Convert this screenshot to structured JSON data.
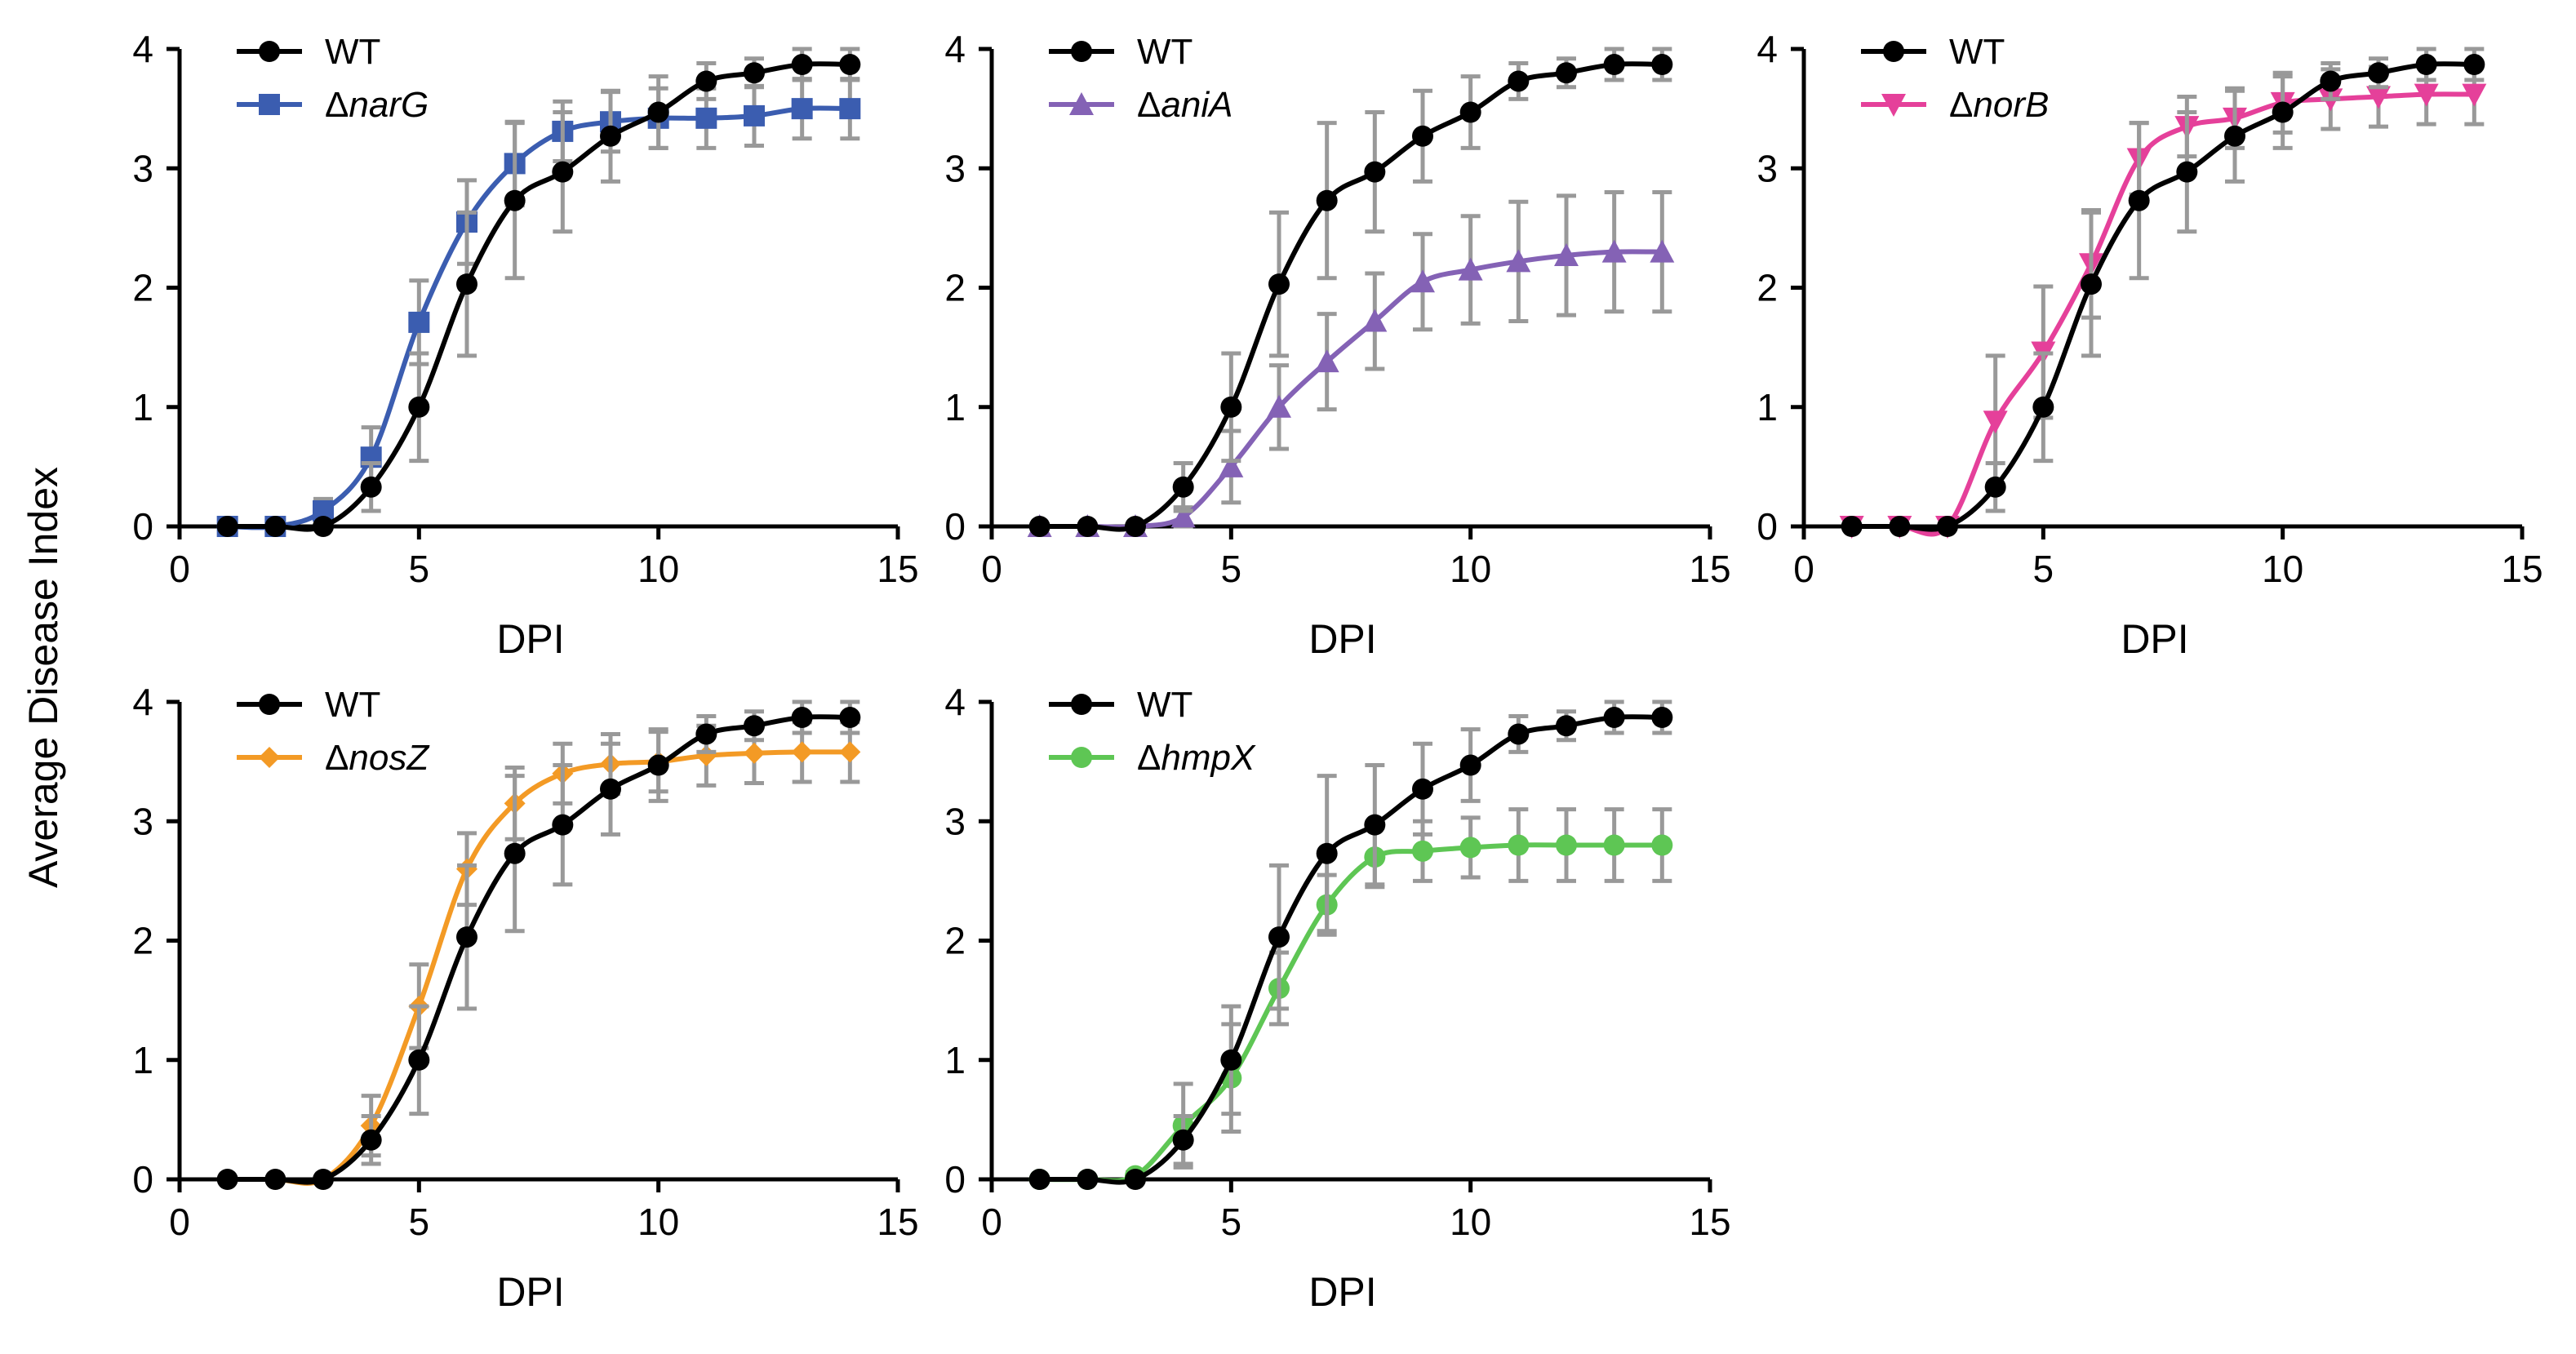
{
  "figure": {
    "ylabel": "Average Disease Index"
  },
  "chart_data": [
    {
      "type": "line",
      "xlabel": "DPI",
      "ylabel": "Average Disease Index",
      "xlim": [
        0,
        15
      ],
      "ylim": [
        0,
        4
      ],
      "xticks": [
        "0",
        "5",
        "10",
        "15"
      ],
      "yticks": [
        "0",
        "1",
        "2",
        "3",
        "4"
      ],
      "legend_position": "top-left",
      "x": [
        1,
        2,
        3,
        4,
        5,
        6,
        7,
        8,
        9,
        10,
        11,
        12,
        13,
        14
      ],
      "series": [
        {
          "name": "WT",
          "color": "#000000",
          "marker": "circle",
          "values": [
            0,
            0,
            0,
            0.33,
            1.0,
            2.03,
            2.73,
            2.97,
            3.27,
            3.47,
            3.73,
            3.8,
            3.87,
            3.87
          ],
          "errors": [
            0,
            0,
            0,
            0.2,
            0.45,
            0.6,
            0.65,
            0.5,
            0.38,
            0.3,
            0.15,
            0.12,
            0.13,
            0.13
          ]
        },
        {
          "name": "ΔnarG",
          "color": "#3b5db0",
          "marker": "square",
          "values": [
            0,
            0,
            0.13,
            0.58,
            1.71,
            2.55,
            3.04,
            3.31,
            3.39,
            3.42,
            3.42,
            3.44,
            3.5,
            3.5
          ],
          "errors": [
            0,
            0,
            0.1,
            0.25,
            0.35,
            0.35,
            0.35,
            0.25,
            0.25,
            0.25,
            0.25,
            0.25,
            0.25,
            0.25
          ]
        }
      ]
    },
    {
      "type": "line",
      "xlabel": "DPI",
      "ylabel": "Average Disease Index",
      "xlim": [
        0,
        15
      ],
      "ylim": [
        0,
        4
      ],
      "xticks": [
        "0",
        "5",
        "10",
        "15"
      ],
      "yticks": [
        "0",
        "1",
        "2",
        "3",
        "4"
      ],
      "legend_position": "top-left",
      "x": [
        1,
        2,
        3,
        4,
        5,
        6,
        7,
        8,
        9,
        10,
        11,
        12,
        13,
        14
      ],
      "series": [
        {
          "name": "WT",
          "color": "#000000",
          "marker": "circle",
          "values": [
            0,
            0,
            0,
            0.33,
            1.0,
            2.03,
            2.73,
            2.97,
            3.27,
            3.47,
            3.73,
            3.8,
            3.87,
            3.87
          ],
          "errors": [
            0,
            0,
            0,
            0.2,
            0.45,
            0.6,
            0.65,
            0.5,
            0.38,
            0.3,
            0.15,
            0.12,
            0.13,
            0.13
          ]
        },
        {
          "name": "ΔaniA",
          "color": "#8462b5",
          "marker": "triangle",
          "values": [
            0,
            0,
            0,
            0.08,
            0.5,
            1.0,
            1.38,
            1.72,
            2.05,
            2.15,
            2.22,
            2.27,
            2.3,
            2.3
          ],
          "errors": [
            0,
            0,
            0,
            0.08,
            0.3,
            0.35,
            0.4,
            0.4,
            0.4,
            0.45,
            0.5,
            0.5,
            0.5,
            0.5
          ]
        }
      ]
    },
    {
      "type": "line",
      "xlabel": "DPI",
      "ylabel": "Average Disease Index",
      "xlim": [
        0,
        15
      ],
      "ylim": [
        0,
        4
      ],
      "xticks": [
        "0",
        "5",
        "10",
        "15"
      ],
      "yticks": [
        "0",
        "1",
        "2",
        "3",
        "4"
      ],
      "legend_position": "top-left",
      "x": [
        1,
        2,
        3,
        4,
        5,
        6,
        7,
        8,
        9,
        10,
        11,
        12,
        13,
        14
      ],
      "series": [
        {
          "name": "WT",
          "color": "#000000",
          "marker": "circle",
          "values": [
            0,
            0,
            0,
            0.33,
            1.0,
            2.03,
            2.73,
            2.97,
            3.27,
            3.47,
            3.73,
            3.8,
            3.87,
            3.87
          ],
          "errors": [
            0,
            0,
            0,
            0.2,
            0.45,
            0.6,
            0.65,
            0.5,
            0.38,
            0.3,
            0.15,
            0.12,
            0.13,
            0.13
          ]
        },
        {
          "name": "ΔnorB",
          "color": "#e5409a",
          "marker": "triangle-down",
          "values": [
            0,
            0,
            0,
            0.88,
            1.46,
            2.2,
            3.08,
            3.35,
            3.42,
            3.55,
            3.58,
            3.6,
            3.62,
            3.62
          ],
          "errors": [
            0,
            0,
            0,
            0.55,
            0.55,
            0.45,
            0.3,
            0.25,
            0.25,
            0.25,
            0.25,
            0.25,
            0.25,
            0.25
          ]
        }
      ]
    },
    {
      "type": "line",
      "xlabel": "DPI",
      "ylabel": "Average Disease Index",
      "xlim": [
        0,
        15
      ],
      "ylim": [
        0,
        4
      ],
      "xticks": [
        "0",
        "5",
        "10",
        "15"
      ],
      "yticks": [
        "0",
        "1",
        "2",
        "3",
        "4"
      ],
      "legend_position": "top-left",
      "x": [
        1,
        2,
        3,
        4,
        5,
        6,
        7,
        8,
        9,
        10,
        11,
        12,
        13,
        14
      ],
      "series": [
        {
          "name": "WT",
          "color": "#000000",
          "marker": "circle",
          "values": [
            0,
            0,
            0,
            0.33,
            1.0,
            2.03,
            2.73,
            2.97,
            3.27,
            3.47,
            3.73,
            3.8,
            3.87,
            3.87
          ],
          "errors": [
            0,
            0,
            0,
            0.2,
            0.45,
            0.6,
            0.65,
            0.5,
            0.38,
            0.3,
            0.15,
            0.12,
            0.13,
            0.13
          ]
        },
        {
          "name": "ΔnosZ",
          "color": "#f39a25",
          "marker": "diamond",
          "values": [
            0,
            0,
            0,
            0.45,
            1.45,
            2.6,
            3.15,
            3.4,
            3.48,
            3.5,
            3.55,
            3.57,
            3.58,
            3.58
          ],
          "errors": [
            0,
            0,
            0,
            0.25,
            0.35,
            0.3,
            0.3,
            0.25,
            0.25,
            0.25,
            0.25,
            0.25,
            0.25,
            0.25
          ]
        }
      ]
    },
    {
      "type": "line",
      "xlabel": "DPI",
      "ylabel": "Average Disease Index",
      "xlim": [
        0,
        15
      ],
      "ylim": [
        0,
        4
      ],
      "xticks": [
        "0",
        "5",
        "10",
        "15"
      ],
      "yticks": [
        "0",
        "1",
        "2",
        "3",
        "4"
      ],
      "legend_position": "top-left",
      "x": [
        1,
        2,
        3,
        4,
        5,
        6,
        7,
        8,
        9,
        10,
        11,
        12,
        13,
        14
      ],
      "series": [
        {
          "name": "WT",
          "color": "#000000",
          "marker": "circle",
          "values": [
            0,
            0,
            0,
            0.33,
            1.0,
            2.03,
            2.73,
            2.97,
            3.27,
            3.47,
            3.73,
            3.8,
            3.87,
            3.87
          ],
          "errors": [
            0,
            0,
            0,
            0.2,
            0.45,
            0.6,
            0.65,
            0.5,
            0.38,
            0.3,
            0.15,
            0.12,
            0.13,
            0.13
          ]
        },
        {
          "name": "ΔhmpX",
          "color": "#5ec654",
          "marker": "circle",
          "values": [
            0,
            0,
            0.03,
            0.45,
            0.85,
            1.6,
            2.3,
            2.7,
            2.75,
            2.78,
            2.8,
            2.8,
            2.8,
            2.8
          ],
          "errors": [
            0,
            0,
            0.03,
            0.35,
            0.45,
            0.3,
            0.25,
            0.25,
            0.25,
            0.25,
            0.3,
            0.3,
            0.3,
            0.3
          ]
        }
      ]
    }
  ]
}
